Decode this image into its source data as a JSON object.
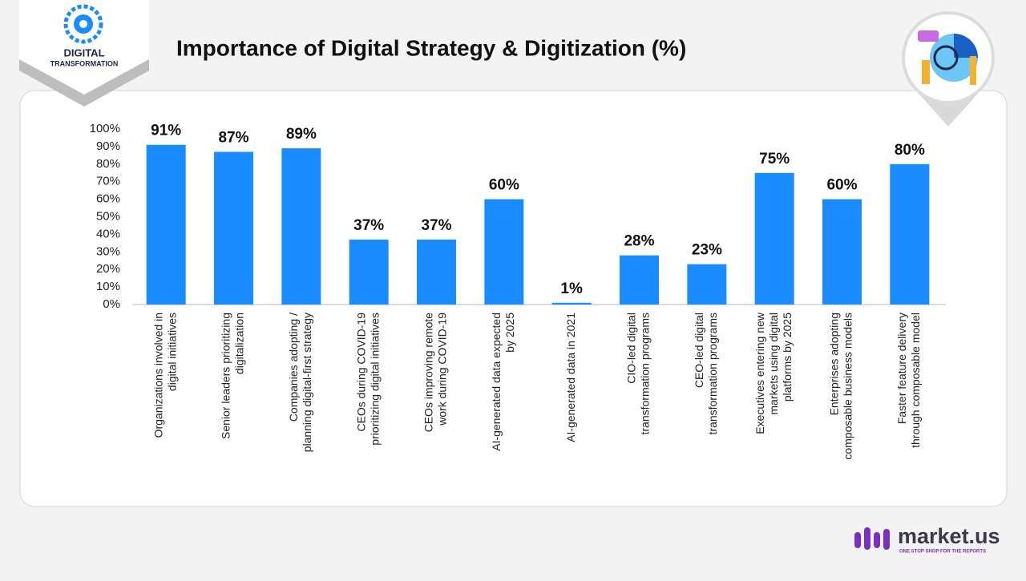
{
  "logo": {
    "line1": "DIGITAL",
    "line2": "TRANSFORMATION"
  },
  "brand": {
    "name": "market.us",
    "tagline": "ONE STOP SHOP FOR THE REPORTS"
  },
  "chart_data": {
    "type": "bar",
    "title": "Importance of Digital Strategy & Digitization (%)",
    "categories": [
      [
        "Organizations involved in",
        "digital initiatives"
      ],
      [
        "Senior leaders prioritizing",
        "digitalization"
      ],
      [
        "Companies adopting /",
        "planning digital-first strategy"
      ],
      [
        "CEOs during COVID-19",
        "prioritizing digital initiatives"
      ],
      [
        "CEOs improving remote",
        "work during COVID-19"
      ],
      [
        "AI-generated data expected",
        "by 2025"
      ],
      [
        "AI-generated data in 2021"
      ],
      [
        "CIO-led digital",
        "transformation programs"
      ],
      [
        "CEO-led digital",
        "transformation programs"
      ],
      [
        "Executives entering new",
        "markets using digital",
        "platforms by 2025"
      ],
      [
        "Enterprises adopting",
        "composable business models"
      ],
      [
        "Faster feature delivery",
        "through composable model"
      ]
    ],
    "values": [
      91,
      87,
      89,
      37,
      37,
      60,
      1,
      28,
      23,
      75,
      60,
      80
    ],
    "value_labels": [
      "91%",
      "87%",
      "89%",
      "37%",
      "37%",
      "60%",
      "1%",
      "28%",
      "23%",
      "75%",
      "60%",
      "80%"
    ],
    "color": "#1a8cff",
    "ylim": [
      0,
      100
    ],
    "yticks": [
      {
        "value": 0,
        "label": "0%"
      },
      {
        "value": 10,
        "label": "10%"
      },
      {
        "value": 20,
        "label": "20%"
      },
      {
        "value": 30,
        "label": "30%"
      },
      {
        "value": 40,
        "label": "40%"
      },
      {
        "value": 50,
        "label": "50%"
      },
      {
        "value": 60,
        "label": "60%"
      },
      {
        "value": 70,
        "label": "70%"
      },
      {
        "value": 80,
        "label": "80%"
      },
      {
        "value": 90,
        "label": "90%"
      },
      {
        "value": 100,
        "label": "100%"
      }
    ],
    "grid": false
  }
}
